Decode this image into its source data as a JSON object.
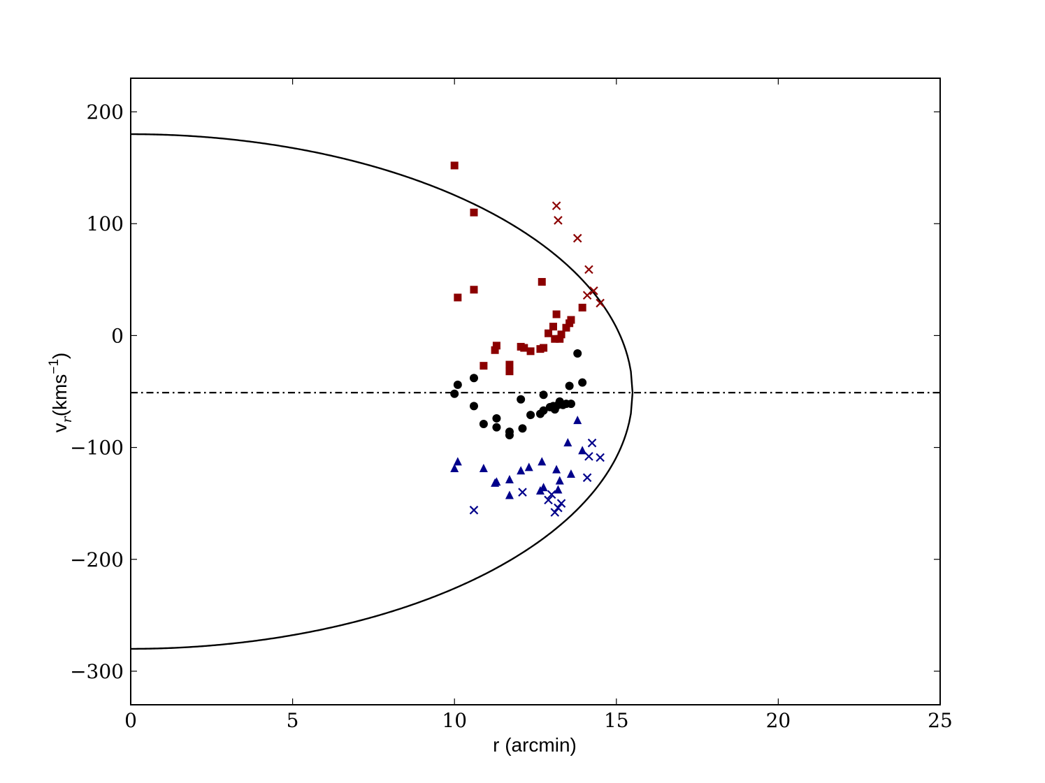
{
  "chart_data": {
    "type": "scatter",
    "xlabel": "r (arcmin)",
    "ylabel": {
      "main": "v",
      "sub": "r",
      "open": "(kms",
      "sup": "−1",
      "close": ")"
    },
    "xlim": [
      0,
      25
    ],
    "ylim": [
      -330,
      230
    ],
    "xticks": [
      0,
      5,
      10,
      15,
      20,
      25
    ],
    "yticks": [
      200,
      100,
      0,
      -100,
      -200,
      -300
    ],
    "xtick_labels": [
      "0",
      "5",
      "10",
      "15",
      "20",
      "25"
    ],
    "ytick_labels": [
      "200",
      "100",
      "0",
      "−100",
      "−200",
      "−300"
    ],
    "grid": false,
    "reference_line": {
      "style": "dash-dot",
      "y": -51,
      "color": "#000000"
    },
    "envelope": {
      "style": "solid",
      "color": "#000000",
      "center": -51,
      "upper_at_zero": 180,
      "lower_at_zero": -280,
      "apex_x": 15.5
    },
    "series": [
      {
        "marker": "square",
        "color": "#8b0000",
        "points": [
          [
            10.0,
            152
          ],
          [
            10.6,
            110
          ],
          [
            10.6,
            41
          ],
          [
            10.1,
            34
          ],
          [
            12.7,
            48
          ],
          [
            10.9,
            -27
          ],
          [
            11.3,
            -9
          ],
          [
            11.25,
            -13
          ],
          [
            11.7,
            -26
          ],
          [
            11.7,
            -32
          ],
          [
            12.05,
            -10
          ],
          [
            12.15,
            -11
          ],
          [
            12.35,
            -14
          ],
          [
            12.65,
            -12
          ],
          [
            12.75,
            -11
          ],
          [
            12.9,
            2
          ],
          [
            13.05,
            8
          ],
          [
            13.1,
            -3
          ],
          [
            13.15,
            19
          ],
          [
            13.25,
            -3
          ],
          [
            13.3,
            1
          ],
          [
            13.45,
            7
          ],
          [
            13.55,
            11
          ],
          [
            13.6,
            14
          ],
          [
            13.95,
            25
          ]
        ]
      },
      {
        "marker": "x",
        "color": "#8b0000",
        "points": [
          [
            13.15,
            116
          ],
          [
            13.2,
            103
          ],
          [
            13.8,
            87
          ],
          [
            14.15,
            59
          ],
          [
            14.3,
            40
          ],
          [
            14.1,
            36
          ],
          [
            14.5,
            29
          ]
        ]
      },
      {
        "marker": "circle",
        "color": "#000000",
        "points": [
          [
            10.0,
            -52
          ],
          [
            10.1,
            -44
          ],
          [
            10.6,
            -38
          ],
          [
            10.6,
            -63
          ],
          [
            10.9,
            -79
          ],
          [
            11.3,
            -74
          ],
          [
            11.3,
            -82
          ],
          [
            11.7,
            -86
          ],
          [
            11.7,
            -89
          ],
          [
            12.05,
            -57
          ],
          [
            12.1,
            -83
          ],
          [
            12.35,
            -71
          ],
          [
            12.65,
            -70
          ],
          [
            12.75,
            -53
          ],
          [
            12.75,
            -67
          ],
          [
            12.95,
            -64
          ],
          [
            13.05,
            -63
          ],
          [
            13.1,
            -66
          ],
          [
            13.2,
            -62
          ],
          [
            13.25,
            -59
          ],
          [
            13.35,
            -62
          ],
          [
            13.45,
            -61
          ],
          [
            13.55,
            -45
          ],
          [
            13.6,
            -61
          ],
          [
            13.8,
            -16
          ],
          [
            13.95,
            -42
          ]
        ]
      },
      {
        "marker": "triangle",
        "color": "#00008b",
        "points": [
          [
            10.0,
            -119
          ],
          [
            10.1,
            -113
          ],
          [
            10.9,
            -119
          ],
          [
            11.25,
            -132
          ],
          [
            11.3,
            -131
          ],
          [
            11.7,
            -143
          ],
          [
            11.7,
            -129
          ],
          [
            12.05,
            -121
          ],
          [
            12.3,
            -118
          ],
          [
            12.65,
            -139
          ],
          [
            12.7,
            -113
          ],
          [
            12.75,
            -136
          ],
          [
            13.15,
            -120
          ],
          [
            13.2,
            -138
          ],
          [
            13.25,
            -130
          ],
          [
            13.5,
            -96
          ],
          [
            13.6,
            -124
          ],
          [
            13.8,
            -76
          ],
          [
            13.95,
            -103
          ]
        ]
      },
      {
        "marker": "x",
        "color": "#00008b",
        "points": [
          [
            10.6,
            -156
          ],
          [
            12.1,
            -140
          ],
          [
            12.9,
            -147
          ],
          [
            13.0,
            -142
          ],
          [
            13.1,
            -158
          ],
          [
            13.2,
            -154
          ],
          [
            13.3,
            -150
          ],
          [
            14.1,
            -127
          ],
          [
            14.15,
            -108
          ],
          [
            14.25,
            -96
          ],
          [
            14.5,
            -109
          ]
        ]
      }
    ]
  }
}
